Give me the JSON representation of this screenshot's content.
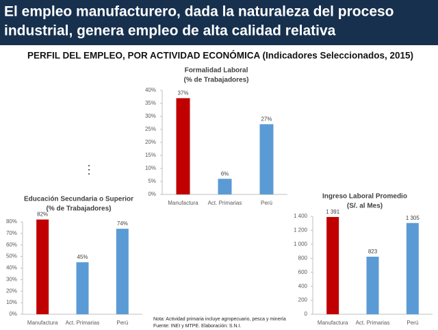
{
  "header": {
    "title_lines": [
      "El empleo manufacturero, dada la naturaleza del proceso",
      "industrial, genera empleo de alta calidad relativa"
    ],
    "subtitle": "PERFIL DEL EMPLEO, POR ACTIVIDAD ECONÓMICA (Indicadores Seleccionados, 2015)"
  },
  "chart_data": [
    {
      "type": "bar",
      "title": "Formalidad Laboral",
      "subtitle": "(% de Trabajadores)",
      "categories": [
        "Manufactura",
        "Act. Primarias",
        "Perú"
      ],
      "values": [
        37,
        6,
        27
      ],
      "value_labels": [
        "37%",
        "6%",
        "27%"
      ],
      "colors": [
        "#c00000",
        "#5b9bd5",
        "#5b9bd5"
      ],
      "ylim": [
        0,
        40
      ],
      "yticks": [
        {
          "value": 0,
          "label": "0%"
        },
        {
          "value": 5,
          "label": "5%"
        },
        {
          "value": 10,
          "label": "10%"
        },
        {
          "value": 15,
          "label": "15%"
        },
        {
          "value": 20,
          "label": "20%"
        },
        {
          "value": 25,
          "label": "25%"
        },
        {
          "value": 30,
          "label": "30%"
        },
        {
          "value": 35,
          "label": "35%"
        },
        {
          "value": 40,
          "label": "40%"
        }
      ],
      "grid": false
    },
    {
      "type": "bar",
      "title": "Educación Secundaria o Superior",
      "subtitle": "(% de Trabajadores)",
      "categories": [
        "Manufactura",
        "Act. Primarias",
        "Perú"
      ],
      "values": [
        82,
        45,
        74
      ],
      "value_labels": [
        "82%",
        "45%",
        "74%"
      ],
      "colors": [
        "#c00000",
        "#5b9bd5",
        "#5b9bd5"
      ],
      "ylim": [
        0,
        80
      ],
      "yticks": [
        {
          "value": 0,
          "label": "0%"
        },
        {
          "value": 10,
          "label": "10%"
        },
        {
          "value": 20,
          "label": "20%"
        },
        {
          "value": 30,
          "label": "30%"
        },
        {
          "value": 40,
          "label": "40%"
        },
        {
          "value": 50,
          "label": "50%"
        },
        {
          "value": 60,
          "label": "60%"
        },
        {
          "value": 70,
          "label": "70%"
        },
        {
          "value": 80,
          "label": "80%"
        }
      ],
      "grid": false
    },
    {
      "type": "bar",
      "title": "Ingreso Laboral Promedio",
      "subtitle": "(S/. al Mes)",
      "categories": [
        "Manufactura",
        "Act. Primarias",
        "Perú"
      ],
      "values": [
        1391,
        823,
        1305
      ],
      "value_labels": [
        "1 391",
        "823",
        "1 305"
      ],
      "colors": [
        "#c00000",
        "#5b9bd5",
        "#5b9bd5"
      ],
      "ylim": [
        0,
        1400
      ],
      "yticks": [
        0,
        200,
        400,
        600,
        800,
        {
          "value": 1000,
          "label": "1 000"
        },
        {
          "value": 1200,
          "label": "1 200"
        },
        {
          "value": 1400,
          "label": "1 400"
        }
      ],
      "grid": false
    }
  ],
  "notes": [
    "Nota: Actividad primaria incluye agropecuario, pesca y minería",
    "Fuente: INEI y MTPE. Elaboración: S.N.I."
  ]
}
